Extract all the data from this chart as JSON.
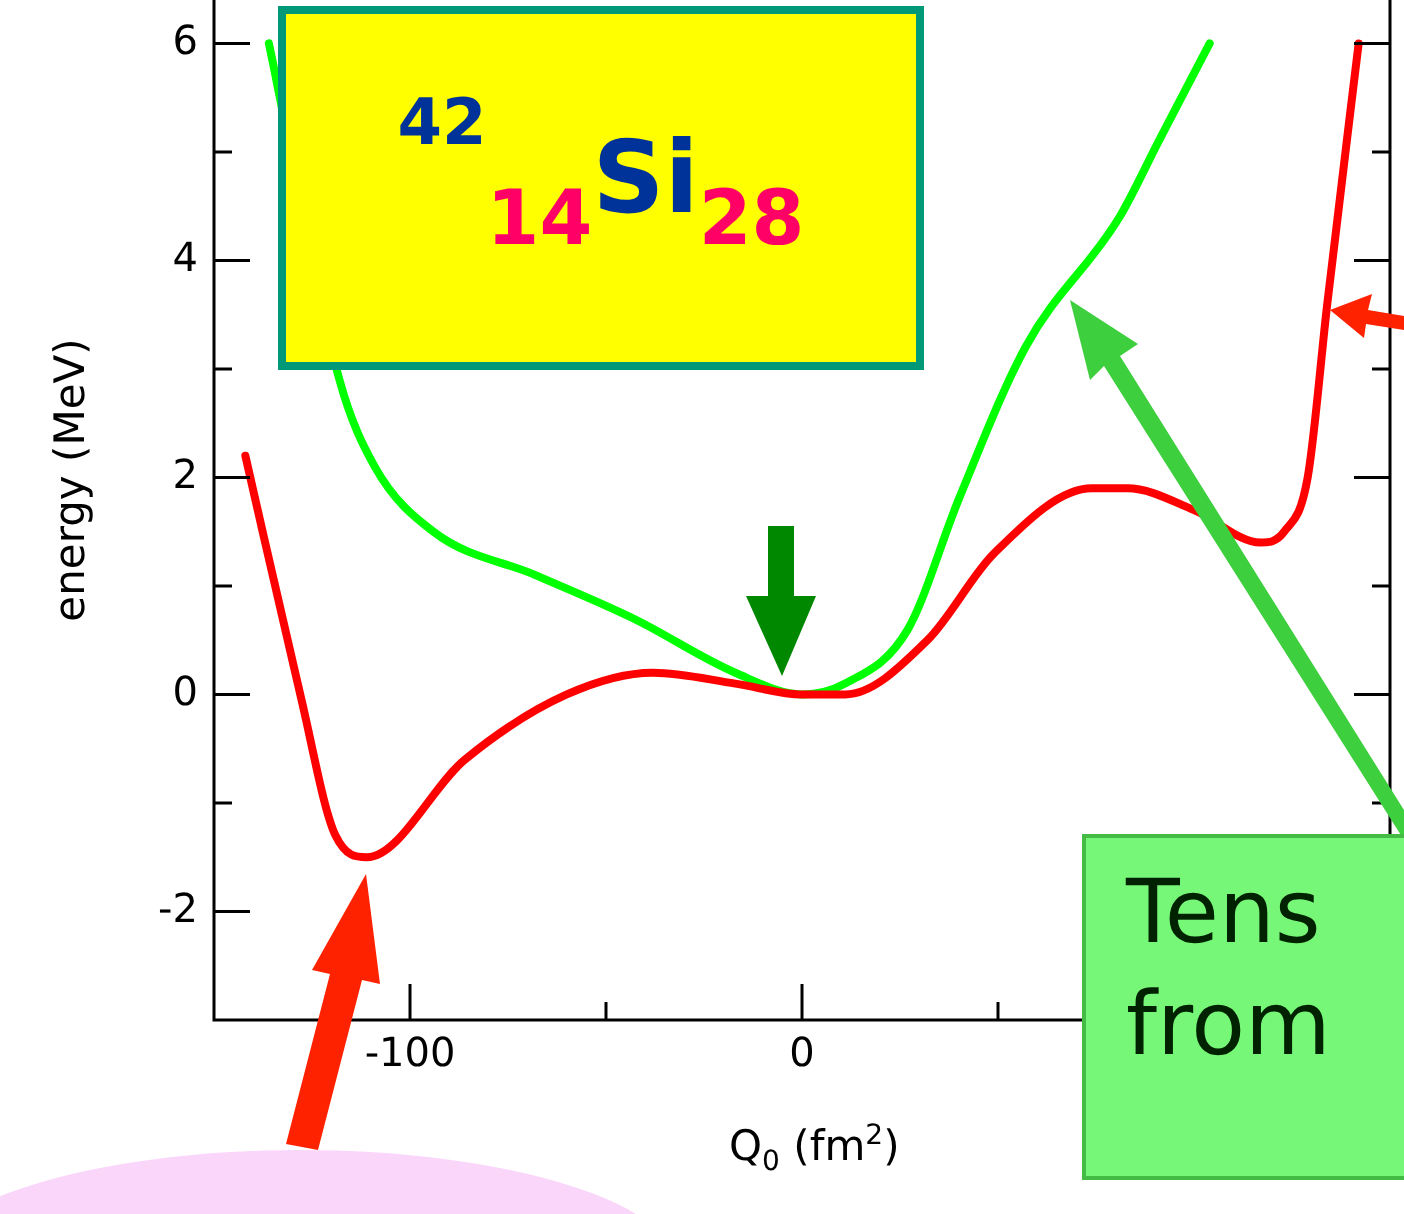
{
  "chart_data": {
    "type": "line",
    "xlabel": "Q$_{0}$ (fm$^{2}$)",
    "ylabel": "energy (MeV)",
    "annotations": [
      "$^{42}$$_{14}$Si$_{28}$",
      "Tens\nfrom"
    ],
    "xlim": [
      -150,
      150
    ],
    "ylim": [
      -3,
      6.4
    ],
    "xticks": [
      -100,
      {
        "value": -50,
        "label": null
      },
      0,
      {
        "value": 50,
        "label": null
      }
    ],
    "yticks": [
      -2,
      {
        "value": -1,
        "label": null
      },
      0,
      {
        "value": 1,
        "label": null
      },
      2,
      {
        "value": 3,
        "label": null
      },
      4,
      {
        "value": 5,
        "label": null
      },
      6
    ],
    "grid": false,
    "legend": false,
    "marker": "none",
    "line_style": "solid",
    "series": [
      {
        "color": "#ff0000",
        "x": [
          -142,
          -128,
          -119,
          -111,
          -86,
          -60,
          -38,
          -17,
          0,
          11,
          32,
          49,
          74,
          83,
          100,
          117,
          123,
          129,
          134,
          142
        ],
        "values": [
          2.2,
          0,
          -1.3,
          -1.5,
          -0.6,
          0,
          0.2,
          0.1,
          0,
          0,
          0.5,
          1.3,
          1.9,
          1.9,
          1.7,
          1.4,
          1.5,
          2.0,
          3.6,
          6.0
        ]
      },
      {
        "color": "#00ff00",
        "x": [
          -136,
          -118,
          -109,
          -94,
          -68,
          -43,
          -17,
          0,
          11,
          27,
          40,
          57,
          81,
          91,
          104
        ],
        "values": [
          6.0,
          2.9,
          2.1,
          1.5,
          1.1,
          0.7,
          0.2,
          0,
          0.1,
          0.6,
          1.8,
          3.2,
          4.4,
          5.1,
          6.0
        ]
      }
    ]
  }
}
